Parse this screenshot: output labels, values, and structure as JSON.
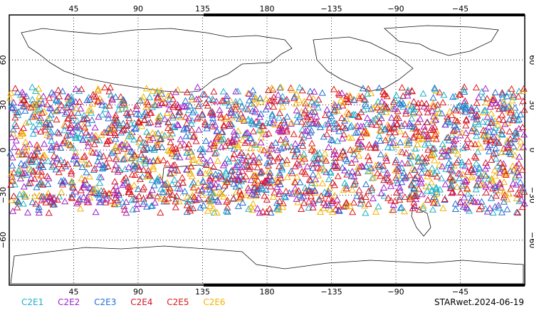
{
  "top_longitude_labels": [
    "45",
    "90",
    "135",
    "180",
    "−135",
    "−90",
    "−45"
  ],
  "bottom_longitude_labels": [
    "45",
    "90",
    "135",
    "180",
    "−135",
    "−90",
    "−45"
  ],
  "left_latitude_labels": [
    "60",
    "30",
    "0",
    "−30",
    "−60"
  ],
  "right_latitude_labels": [
    "60",
    "30",
    "0",
    "−30",
    "−60"
  ],
  "legend": [
    {
      "name": "C2E1",
      "color": "#1ab0c8"
    },
    {
      "name": "C2E2",
      "color": "#a020c8"
    },
    {
      "name": "C2E3",
      "color": "#1f6fd0"
    },
    {
      "name": "C2E4",
      "color": "#d4142a"
    },
    {
      "name": "C2E5",
      "color": "#e01818"
    },
    {
      "name": "C2E6",
      "color": "#f4b400"
    }
  ],
  "footer": "STARwet.2024-06-19",
  "map": {
    "lon_range_centered": [
      0,
      360
    ],
    "lat_range": [
      -90,
      90
    ],
    "observation_band_lat": [
      -42,
      42
    ],
    "marker": "open-triangle"
  }
}
